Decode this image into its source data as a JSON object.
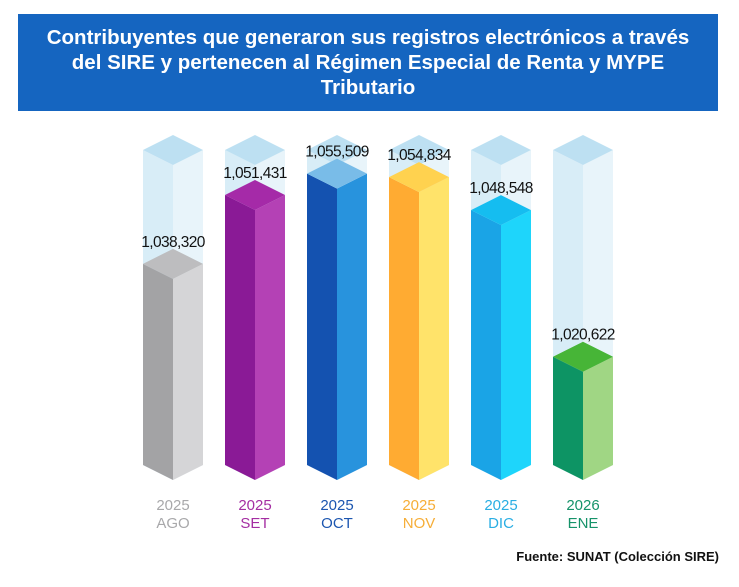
{
  "title": "Contribuyentes que generaron sus registros electrónicos a través del SIRE y pertenecen al Régimen Especial de Renta y MYPE Tributario",
  "source": "Fuente: SUNAT (Colección SIRE)",
  "colors": {
    "banner": "#1565c0",
    "ghost_top": "#bde0f2",
    "ghost_left": "#d8edf7",
    "ghost_right": "#e8f4fa"
  },
  "chart_data": {
    "type": "bar",
    "style": "3d-cylinder-columns",
    "title": "Contribuyentes que generaron sus registros electrónicos a través del SIRE y pertenecen al Régimen Especial de Renta y MYPE Tributario",
    "categories": [
      "2025 AGO",
      "2025 SET",
      "2025 OCT",
      "2025 NOV",
      "2025 DIC",
      "2026 ENE"
    ],
    "values": [
      1038320,
      1051431,
      1055509,
      1054834,
      1048548,
      1020622
    ],
    "value_labels": [
      "1,038,320",
      "1,051,431",
      "1,055,509",
      "1,054,834",
      "1,048,548",
      "1,020,622"
    ],
    "ylim": [
      1000000,
      1060000
    ],
    "xlabel": "",
    "ylabel": "",
    "bars": [
      {
        "year": "2025",
        "month": "AGO",
        "value": 1038320,
        "label": "1,038,320",
        "colors": {
          "left": "#a3a3a5",
          "right": "#d5d5d7",
          "top": "#bdbdbf",
          "text": "#a8a8aa"
        }
      },
      {
        "year": "2025",
        "month": "SET",
        "value": 1051431,
        "label": "1,051,431",
        "colors": {
          "left": "#8a1a96",
          "right": "#b441b5",
          "top": "#a52aa8",
          "text": "#a42ea2"
        }
      },
      {
        "year": "2025",
        "month": "OCT",
        "value": 1055509,
        "label": "1,055,509",
        "colors": {
          "left": "#1452b0",
          "right": "#2893dd",
          "top": "#79bce8",
          "text": "#1c56b0"
        }
      },
      {
        "year": "2025",
        "month": "NOV",
        "value": 1054834,
        "label": "1,054,834",
        "colors": {
          "left": "#ffab32",
          "right": "#ffe36a",
          "top": "#ffd24f",
          "text": "#f6ae38"
        }
      },
      {
        "year": "2025",
        "month": "DIC",
        "value": 1048548,
        "label": "1,048,548",
        "colors": {
          "left": "#1aa4e6",
          "right": "#1ed5fb",
          "top": "#15bdf0",
          "text": "#2aaee3"
        }
      },
      {
        "year": "2026",
        "month": "ENE",
        "value": 1020622,
        "label": "1,020,622",
        "colors": {
          "left": "#0d9464",
          "right": "#a0d684",
          "top": "#47b537",
          "text": "#16936a"
        }
      }
    ]
  }
}
